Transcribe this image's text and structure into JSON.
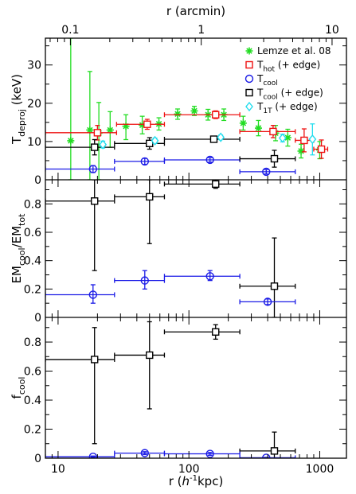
{
  "chart_data": {
    "type": "scatter",
    "x_scale": "log",
    "x_range_kpc": [
      8,
      1600
    ],
    "x_top_range_arcmin": [
      0.0644,
      12.88
    ],
    "top_axis": {
      "label": "r (arcmin)",
      "ticks": [
        {
          "value": 0.1,
          "label": "0.1"
        },
        {
          "value": 1,
          "label": "1"
        },
        {
          "value": 10,
          "label": "10"
        }
      ]
    },
    "bottom_axis": {
      "label_prefix": "r (",
      "label_italic": "h",
      "label_sup": "-1",
      "label_suffix": "kpc)",
      "ticks": [
        {
          "value": 10,
          "label": "10"
        },
        {
          "value": 100,
          "label": "100"
        },
        {
          "value": 1000,
          "label": "1000"
        }
      ]
    },
    "colors": {
      "lemze": "#22dd22",
      "hot": "#ee1111",
      "cool": "#1a1ae6",
      "cool_edge": "#000000",
      "t1t": "#22ddee"
    },
    "legend": [
      {
        "key": "lemze",
        "symbol": "star",
        "text": "Lemze et al. 08",
        "sub": ""
      },
      {
        "key": "hot",
        "symbol": "square",
        "text": "T",
        "sub": "hot",
        "suffix": " (+ edge)"
      },
      {
        "key": "cool",
        "symbol": "circle",
        "text": "T",
        "sub": "cool",
        "suffix": ""
      },
      {
        "key": "cool_edge",
        "symbol": "square",
        "text": "T",
        "sub": "cool",
        "suffix": " (+ edge)"
      },
      {
        "key": "t1t",
        "symbol": "diamond",
        "text": "T",
        "sub": "1T",
        "suffix": " (+ edge)"
      }
    ],
    "panels": [
      {
        "id": "temperature",
        "ylabel_main": "T",
        "ylabel_sub": "deproj",
        "ylabel_suffix": " (keV)",
        "ylim": [
          0,
          37
        ],
        "yticks": [
          0,
          10,
          20,
          30
        ],
        "series": [
          {
            "key": "lemze",
            "symbol": "star",
            "points": [
              {
                "x": 12.5,
                "y": 10.2,
                "ylo": 0,
                "yhi": 37
              },
              {
                "x": 17.5,
                "y": 13,
                "ylo": 0,
                "yhi": 28.3
              },
              {
                "x": 20.5,
                "y": 12.2,
                "ylo": 0,
                "yhi": 20.2
              },
              {
                "x": 25,
                "y": 13,
                "ylo": 8.5,
                "yhi": 17.8
              },
              {
                "x": 33,
                "y": 14,
                "ylo": 10.5,
                "yhi": 17
              },
              {
                "x": 44,
                "y": 14.3,
                "ylo": 12,
                "yhi": 16.6
              },
              {
                "x": 59,
                "y": 14.6,
                "ylo": 13,
                "yhi": 16.2
              },
              {
                "x": 82,
                "y": 17.2,
                "ylo": 15.8,
                "yhi": 18.5
              },
              {
                "x": 110,
                "y": 18,
                "ylo": 16.8,
                "yhi": 19.2
              },
              {
                "x": 140,
                "y": 17,
                "ylo": 15.6,
                "yhi": 18.4
              },
              {
                "x": 185,
                "y": 17,
                "ylo": 15.5,
                "yhi": 18.5
              },
              {
                "x": 260,
                "y": 14.8,
                "ylo": 13,
                "yhi": 16.6
              },
              {
                "x": 340,
                "y": 13.5,
                "ylo": 11.5,
                "yhi": 15.5
              },
              {
                "x": 460,
                "y": 12.2,
                "ylo": 10.2,
                "yhi": 14.2
              },
              {
                "x": 570,
                "y": 11,
                "ylo": 8.8,
                "yhi": 13.2
              },
              {
                "x": 720,
                "y": 7.5,
                "ylo": 5.7,
                "yhi": 9.3
              },
              {
                "x": 1000,
                "y": 7.8,
                "ylo": 5.5,
                "yhi": 10
              }
            ]
          },
          {
            "key": "hot",
            "symbol": "square",
            "points": [
              {
                "x": 20,
                "y": 12.3,
                "xlo": 8,
                "xhi": 28,
                "ylo": 10.4,
                "yhi": 14.2
              },
              {
                "x": 48,
                "y": 14.5,
                "xlo": 28,
                "xhi": 65,
                "ylo": 13.2,
                "yhi": 15.8
              },
              {
                "x": 160,
                "y": 17,
                "xlo": 65,
                "xhi": 245,
                "ylo": 16,
                "yhi": 18
              },
              {
                "x": 440,
                "y": 12.6,
                "xlo": 245,
                "xhi": 650,
                "ylo": 11,
                "yhi": 14.2
              },
              {
                "x": 760,
                "y": 10.3,
                "xlo": 650,
                "xhi": 900,
                "ylo": 7.3,
                "yhi": 13.3
              },
              {
                "x": 1030,
                "y": 8,
                "xlo": 900,
                "xhi": 1150,
                "ylo": 5.6,
                "yhi": 10.4
              }
            ]
          },
          {
            "key": "cool",
            "symbol": "circle",
            "points": [
              {
                "x": 18.5,
                "y": 2.8,
                "xlo": 8,
                "xhi": 27,
                "ylo": 1.9,
                "yhi": 3.7
              },
              {
                "x": 46,
                "y": 4.8,
                "xlo": 27,
                "xhi": 65,
                "ylo": 4,
                "yhi": 5.6
              },
              {
                "x": 145,
                "y": 5.2,
                "xlo": 65,
                "xhi": 245,
                "ylo": 4.6,
                "yhi": 5.8
              },
              {
                "x": 390,
                "y": 2.1,
                "xlo": 245,
                "xhi": 650,
                "ylo": 1.5,
                "yhi": 2.7
              }
            ]
          },
          {
            "key": "cool_edge",
            "symbol": "square",
            "points": [
              {
                "x": 19,
                "y": 8.5,
                "xlo": 8,
                "xhi": 27,
                "ylo": 6.5,
                "yhi": 10.5
              },
              {
                "x": 50,
                "y": 9.5,
                "xlo": 27,
                "xhi": 65,
                "ylo": 8,
                "yhi": 11
              },
              {
                "x": 155,
                "y": 10.6,
                "xlo": 65,
                "xhi": 245,
                "ylo": 9.8,
                "yhi": 11.4
              },
              {
                "x": 450,
                "y": 5.5,
                "xlo": 245,
                "xhi": 650,
                "ylo": 3.3,
                "yhi": 7.7
              }
            ]
          },
          {
            "key": "t1t",
            "symbol": "diamond",
            "points": [
              {
                "x": 22,
                "y": 9.2,
                "ylo": 8.3,
                "yhi": 10.1
              },
              {
                "x": 55,
                "y": 10.2,
                "ylo": 9.5,
                "yhi": 10.9
              },
              {
                "x": 175,
                "y": 11.1,
                "ylo": 10.5,
                "yhi": 11.7
              },
              {
                "x": 520,
                "y": 10.9,
                "ylo": 9.9,
                "yhi": 11.9
              },
              {
                "x": 880,
                "y": 10.6,
                "ylo": 6.5,
                "yhi": 14.6
              }
            ]
          }
        ]
      },
      {
        "id": "em_ratio",
        "ylabel_main": "EM",
        "ylabel_sub": "cool",
        "ylabel_suffix": "/EM",
        "ylabel_sub2": "tot",
        "ylim": [
          0,
          0.97
        ],
        "yticks": [
          0,
          0.2,
          0.4,
          0.6,
          0.8
        ],
        "yticklabels": [
          "0",
          "0.2",
          "0.4",
          "0.6",
          "0.8"
        ],
        "series": [
          {
            "key": "cool_edge",
            "symbol": "square",
            "points": [
              {
                "x": 19,
                "y": 0.82,
                "xlo": 8,
                "xhi": 27,
                "ylo": 0.33,
                "yhi": 0.97
              },
              {
                "x": 50,
                "y": 0.85,
                "xlo": 27,
                "xhi": 65,
                "ylo": 0.52,
                "yhi": 0.97
              },
              {
                "x": 160,
                "y": 0.94,
                "xlo": 65,
                "xhi": 245,
                "ylo": 0.91,
                "yhi": 0.97
              },
              {
                "x": 450,
                "y": 0.22,
                "xlo": 245,
                "xhi": 650,
                "ylo": 0,
                "yhi": 0.56
              }
            ]
          },
          {
            "key": "cool",
            "symbol": "circle",
            "points": [
              {
                "x": 18.5,
                "y": 0.16,
                "xlo": 8,
                "xhi": 27,
                "ylo": 0.1,
                "yhi": 0.23
              },
              {
                "x": 46,
                "y": 0.26,
                "xlo": 27,
                "xhi": 65,
                "ylo": 0.2,
                "yhi": 0.33
              },
              {
                "x": 145,
                "y": 0.29,
                "xlo": 65,
                "xhi": 245,
                "ylo": 0.26,
                "yhi": 0.33
              },
              {
                "x": 400,
                "y": 0.11,
                "xlo": 245,
                "xhi": 650,
                "ylo": 0.09,
                "yhi": 0.13
              }
            ]
          }
        ]
      },
      {
        "id": "f_cool",
        "ylabel_main": "f",
        "ylabel_sub": "cool",
        "ylabel_suffix": "",
        "ylim": [
          0,
          0.97
        ],
        "yticks": [
          0,
          0.2,
          0.4,
          0.6,
          0.8
        ],
        "yticklabels": [
          "0",
          "0.2",
          "0.4",
          "0.6",
          "0.8"
        ],
        "series": [
          {
            "key": "cool_edge",
            "symbol": "square",
            "points": [
              {
                "x": 19,
                "y": 0.68,
                "xlo": 8,
                "xhi": 27,
                "ylo": 0.1,
                "yhi": 0.9
              },
              {
                "x": 50,
                "y": 0.71,
                "xlo": 27,
                "xhi": 65,
                "ylo": 0.34,
                "yhi": 0.94
              },
              {
                "x": 160,
                "y": 0.87,
                "xlo": 65,
                "xhi": 245,
                "ylo": 0.82,
                "yhi": 0.92
              },
              {
                "x": 450,
                "y": 0.05,
                "xlo": 245,
                "xhi": 650,
                "ylo": 0,
                "yhi": 0.18
              }
            ]
          },
          {
            "key": "cool",
            "symbol": "circle",
            "points": [
              {
                "x": 18.5,
                "y": 0.01,
                "xlo": 8,
                "xhi": 27,
                "ylo": 0.005,
                "yhi": 0.015
              },
              {
                "x": 46,
                "y": 0.035,
                "xlo": 27,
                "xhi": 65,
                "ylo": 0.025,
                "yhi": 0.045
              },
              {
                "x": 145,
                "y": 0.03,
                "xlo": 65,
                "xhi": 245,
                "ylo": 0.02,
                "yhi": 0.04
              },
              {
                "x": 390,
                "y": 0.003,
                "xlo": 245,
                "xhi": 650,
                "ylo": 0,
                "yhi": 0.006
              }
            ]
          }
        ]
      }
    ]
  }
}
